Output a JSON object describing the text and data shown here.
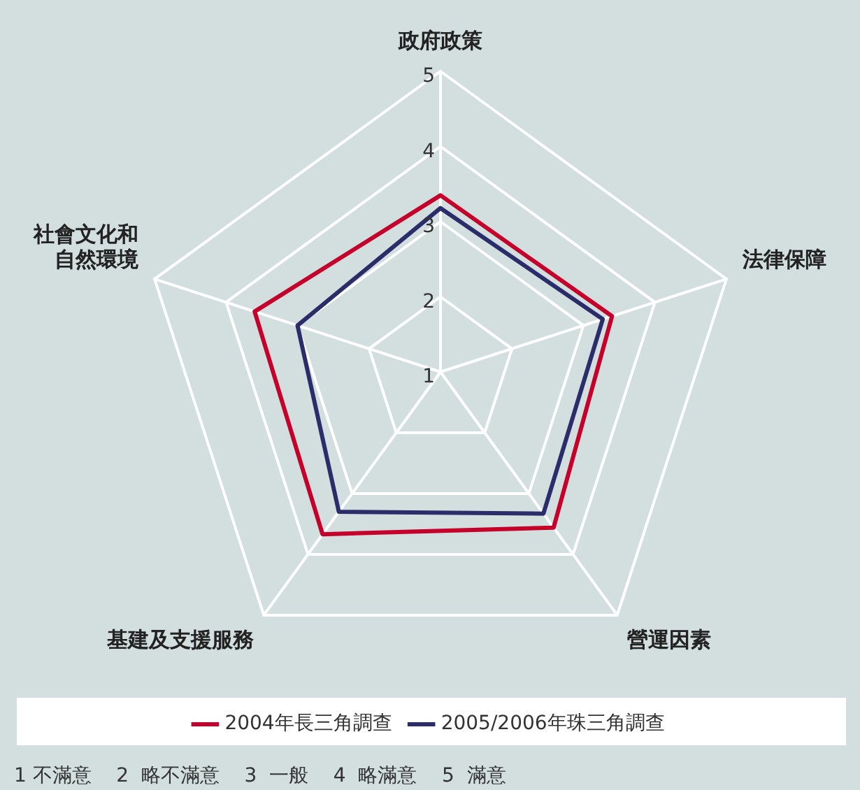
{
  "chart_data": {
    "type": "radar",
    "categories": [
      "政府政策",
      "法律保障",
      "營運因素",
      "基建及支援服務",
      "社會文化和自然環境"
    ],
    "series": [
      {
        "name": "2004年長三角調查",
        "color": "#c4002b",
        "values": [
          3.35,
          3.4,
          3.56,
          3.67,
          3.6
        ]
      },
      {
        "name": "2005/2006年珠三角調查",
        "color": "#2b2d6b",
        "values": [
          3.18,
          3.27,
          3.33,
          3.3,
          3.0
        ]
      }
    ],
    "ylim": [
      1,
      5
    ],
    "yticks": [
      1,
      2,
      3,
      4,
      5
    ],
    "grid": true,
    "legend": "bottom",
    "marker": "none",
    "line_style": "solid",
    "annotations": [
      "1 不滿意    2  略不滿意    3  一般    4  略滿意    5  滿意"
    ]
  }
}
